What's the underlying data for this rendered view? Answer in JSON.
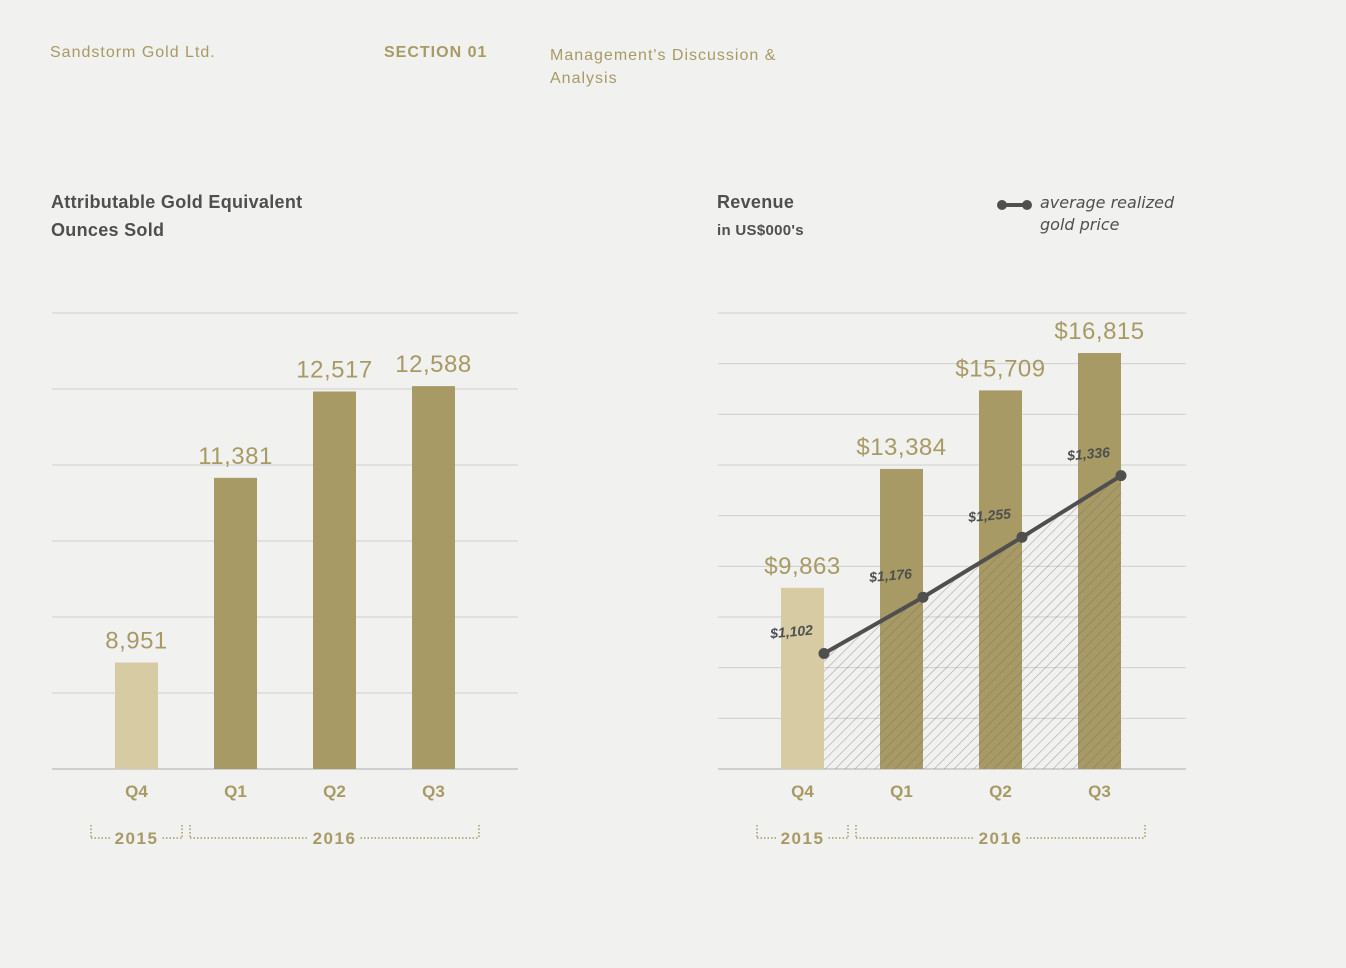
{
  "header": {
    "company": "Sandstorm Gold Ltd.",
    "section": "SECTION 01",
    "title": "Management's Discussion & Analysis"
  },
  "colors": {
    "bar": "#a89a64",
    "bar_light": "#d6cba3",
    "line": "#4f4f4f",
    "grid": "#cfcfcf",
    "text": "#4f4f4f"
  },
  "legend": {
    "line_label": "average realized gold price"
  },
  "chart_data": [
    {
      "type": "bar",
      "title": "Attributable Gold Equivalent Ounces Sold",
      "categories": [
        "Q4",
        "Q1",
        "Q2",
        "Q3"
      ],
      "values": [
        8951,
        11381,
        12517,
        12588
      ],
      "value_labels": [
        "8,951",
        "11,381",
        "12,517",
        "12,588"
      ],
      "highlight": [
        true,
        false,
        false,
        false
      ],
      "year_groups": [
        {
          "label": "2015",
          "span": 1
        },
        {
          "label": "2016",
          "span": 3
        }
      ],
      "ylim": [
        7550,
        13550
      ],
      "grid_count": 7
    },
    {
      "type": "bar",
      "title": "Revenue",
      "subtitle": "in US$000's",
      "categories": [
        "Q4",
        "Q1",
        "Q2",
        "Q3"
      ],
      "values": [
        9863,
        13384,
        15709,
        16815
      ],
      "value_labels": [
        "$9,863",
        "$13,384",
        "$15,709",
        "$16,815"
      ],
      "highlight": [
        true,
        false,
        false,
        false
      ],
      "year_groups": [
        {
          "label": "2015",
          "span": 1
        },
        {
          "label": "2016",
          "span": 3
        }
      ],
      "ylim": [
        4500,
        18000
      ],
      "grid_count": 10,
      "line_series": {
        "name": "average realized gold price",
        "values": [
          1102,
          1176,
          1255,
          1336
        ],
        "value_labels": [
          "$1,102",
          "$1,176",
          "$1,255",
          "$1,336"
        ],
        "ylim": [
          950,
          1550
        ]
      }
    }
  ]
}
